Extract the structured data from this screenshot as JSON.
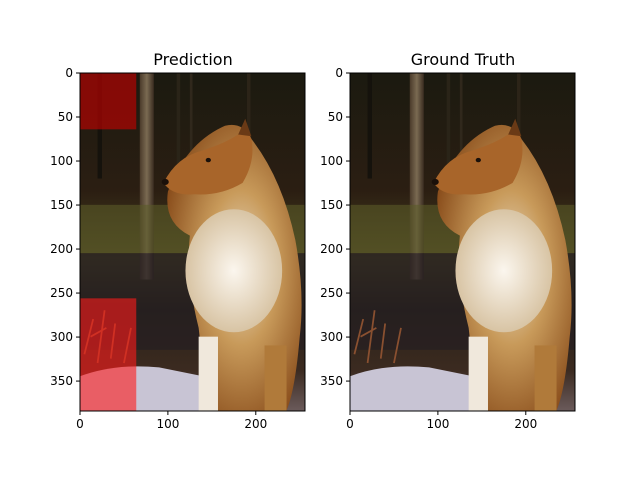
{
  "chart_data": [
    {
      "type": "image-overlay",
      "title": "Prediction",
      "xlim": [
        0,
        256
      ],
      "ylim": [
        384,
        0
      ],
      "xticks": [
        0,
        100,
        200
      ],
      "yticks": [
        0,
        50,
        100,
        150,
        200,
        250,
        300,
        350
      ],
      "overlays": [
        {
          "x0": 0,
          "x1": 64,
          "y0": 0,
          "y1": 64,
          "color": "#cc0000"
        },
        {
          "x0": 0,
          "x1": 64,
          "y0": 256,
          "y1": 384,
          "color": "#ff1a1a"
        }
      ]
    },
    {
      "type": "image",
      "title": "Ground Truth",
      "xlim": [
        0,
        256
      ],
      "ylim": [
        384,
        0
      ],
      "xticks": [
        0,
        100,
        200
      ],
      "yticks": [
        0,
        50,
        100,
        150,
        200,
        250,
        300,
        350
      ],
      "overlays": []
    }
  ]
}
